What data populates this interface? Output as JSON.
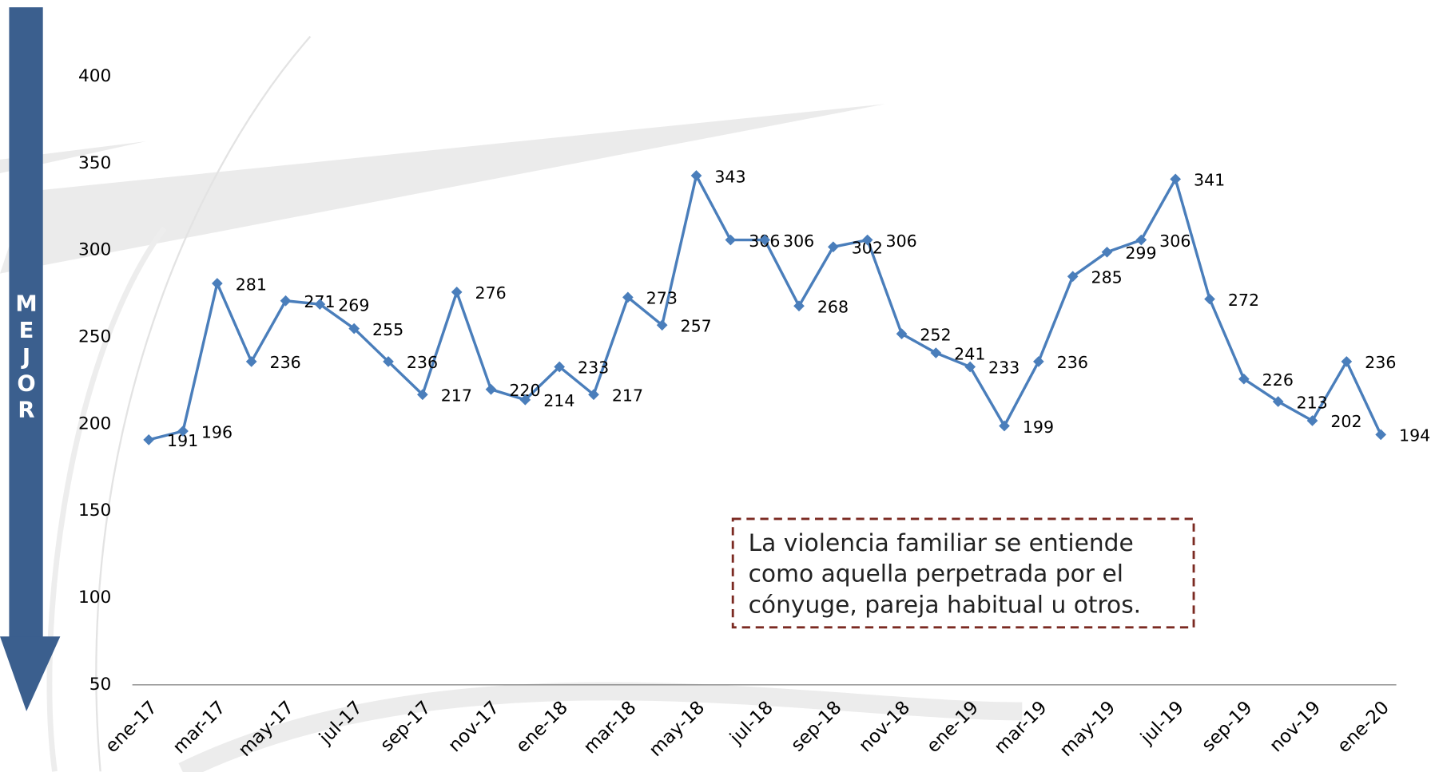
{
  "chart_data": {
    "type": "line",
    "side_label": "MEJOR",
    "annotation_lines": [
      "La violencia familiar se entiende",
      "como aquella perpetrada por el",
      "cónyuge, pareja habitual u otros."
    ],
    "categories": [
      "ene-17",
      null,
      "mar-17",
      null,
      "may-17",
      null,
      "jul-17",
      null,
      "sep-17",
      null,
      "nov-17",
      null,
      "ene-18",
      null,
      "mar-18",
      null,
      "may-18",
      null,
      "jul-18",
      null,
      "sep-18",
      null,
      "nov-18",
      null,
      "ene-19",
      null,
      "mar-19",
      null,
      "may-19",
      null,
      "jul-19",
      null,
      "sep-19",
      null,
      "nov-19",
      null,
      "ene-20"
    ],
    "series": [
      {
        "color": "#4a7ebb",
        "values": [
          191,
          196,
          281,
          236,
          271,
          269,
          255,
          236,
          217,
          276,
          220,
          214,
          233,
          217,
          273,
          257,
          343,
          306,
          306,
          268,
          302,
          306,
          252,
          241,
          233,
          199,
          236,
          285,
          299,
          306,
          341,
          272,
          226,
          213,
          202,
          236,
          194
        ]
      }
    ],
    "ylim": [
      50,
      400
    ],
    "yticks": [
      50,
      100,
      150,
      200,
      250,
      300,
      350,
      400
    ],
    "grid": false,
    "data_labels": true
  }
}
